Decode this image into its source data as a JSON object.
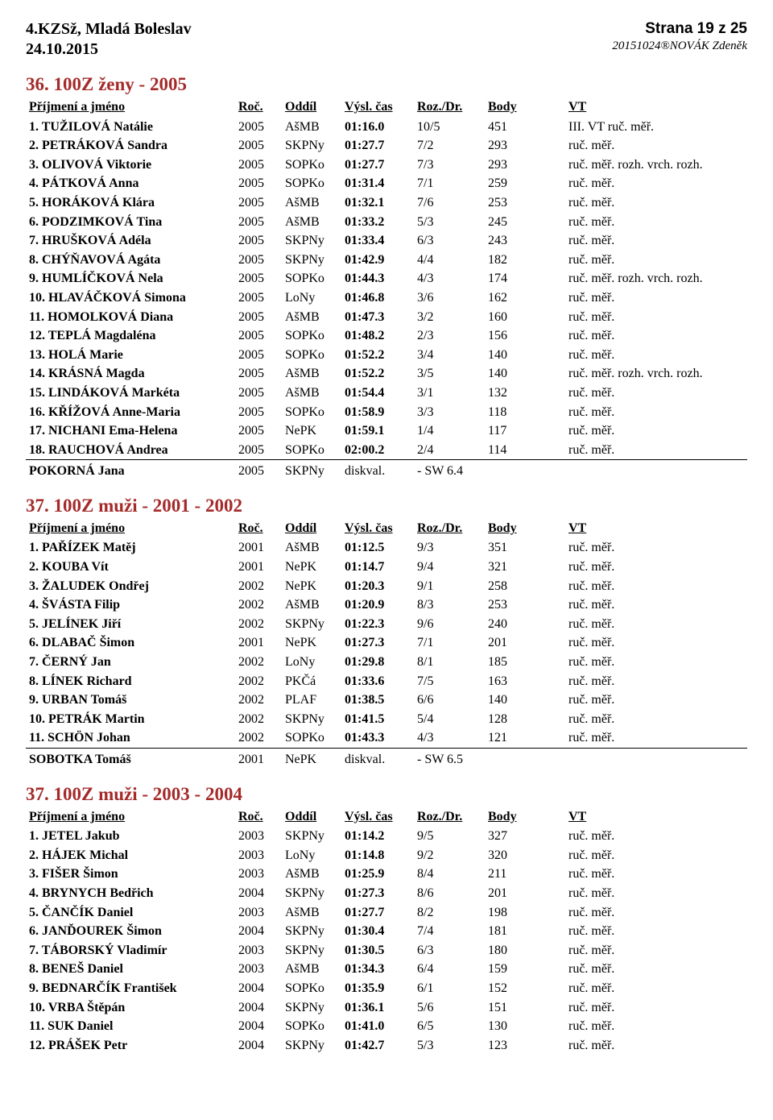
{
  "header": {
    "left1": "4.KZSž, Mladá Boleslav",
    "left2": "24.10.2015",
    "right1": "Strana 19 z 25",
    "right2": "20151024®NOVÁK Zdeněk"
  },
  "columns": {
    "name": "Příjmení a jméno",
    "roc": "Roč.",
    "oddil": "Oddíl",
    "cas": "Výsl. čas",
    "roz": "Roz./Dr.",
    "body": "Body",
    "vt": "VT"
  },
  "sections": [
    {
      "title": "36. 100Z ženy - 2005",
      "rows": [
        {
          "n": "1. TUŽILOVÁ Natálie",
          "roc": "2005",
          "oddil": "AšMB",
          "cas": "01:16.0",
          "roz": "10/5",
          "body": "451",
          "vt": "III. VT ruč. měř."
        },
        {
          "n": "2. PETRÁKOVÁ Sandra",
          "roc": "2005",
          "oddil": "SKPNy",
          "cas": "01:27.7",
          "roz": "7/2",
          "body": "293",
          "vt": "ruč. měř."
        },
        {
          "n": "3. OLIVOVÁ Viktorie",
          "roc": "2005",
          "oddil": "SOPKo",
          "cas": "01:27.7",
          "roz": "7/3",
          "body": "293",
          "vt": "ruč. měř. rozh. vrch. rozh."
        },
        {
          "n": "4. PÁTKOVÁ Anna",
          "roc": "2005",
          "oddil": "SOPKo",
          "cas": "01:31.4",
          "roz": "7/1",
          "body": "259",
          "vt": "ruč. měř."
        },
        {
          "n": "5. HORÁKOVÁ Klára",
          "roc": "2005",
          "oddil": "AšMB",
          "cas": "01:32.1",
          "roz": "7/6",
          "body": "253",
          "vt": "ruč. měř."
        },
        {
          "n": "6. PODZIMKOVÁ Tina",
          "roc": "2005",
          "oddil": "AšMB",
          "cas": "01:33.2",
          "roz": "5/3",
          "body": "245",
          "vt": "ruč. měř."
        },
        {
          "n": "7. HRUŠKOVÁ Adéla",
          "roc": "2005",
          "oddil": "SKPNy",
          "cas": "01:33.4",
          "roz": "6/3",
          "body": "243",
          "vt": "ruč. měř."
        },
        {
          "n": "8. CHÝŇAVOVÁ Agáta",
          "roc": "2005",
          "oddil": "SKPNy",
          "cas": "01:42.9",
          "roz": "4/4",
          "body": "182",
          "vt": "ruč. měř."
        },
        {
          "n": "9. HUMLÍČKOVÁ Nela",
          "roc": "2005",
          "oddil": "SOPKo",
          "cas": "01:44.3",
          "roz": "4/3",
          "body": "174",
          "vt": "ruč. měř. rozh. vrch. rozh."
        },
        {
          "n": "10. HLAVÁČKOVÁ Simona",
          "roc": "2005",
          "oddil": "LoNy",
          "cas": "01:46.8",
          "roz": "3/6",
          "body": "162",
          "vt": "ruč. měř."
        },
        {
          "n": "11. HOMOLKOVÁ Diana",
          "roc": "2005",
          "oddil": "AšMB",
          "cas": "01:47.3",
          "roz": "3/2",
          "body": "160",
          "vt": "ruč. měř."
        },
        {
          "n": "12. TEPLÁ Magdaléna",
          "roc": "2005",
          "oddil": "SOPKo",
          "cas": "01:48.2",
          "roz": "2/3",
          "body": "156",
          "vt": "ruč. měř."
        },
        {
          "n": "13. HOLÁ Marie",
          "roc": "2005",
          "oddil": "SOPKo",
          "cas": "01:52.2",
          "roz": "3/4",
          "body": "140",
          "vt": "ruč. měř."
        },
        {
          "n": "14. KRÁSNÁ Magda",
          "roc": "2005",
          "oddil": "AšMB",
          "cas": "01:52.2",
          "roz": "3/5",
          "body": "140",
          "vt": "ruč. měř. rozh. vrch. rozh."
        },
        {
          "n": "15. LINDÁKOVÁ Markéta",
          "roc": "2005",
          "oddil": "AšMB",
          "cas": "01:54.4",
          "roz": "3/1",
          "body": "132",
          "vt": "ruč. měř."
        },
        {
          "n": "16. KŘÍŽOVÁ Anne-Maria",
          "roc": "2005",
          "oddil": "SOPKo",
          "cas": "01:58.9",
          "roz": "3/3",
          "body": "118",
          "vt": "ruč. měř."
        },
        {
          "n": "17. NICHANI Ema-Helena",
          "roc": "2005",
          "oddil": "NePK",
          "cas": "01:59.1",
          "roz": "1/4",
          "body": "117",
          "vt": "ruč. měř."
        },
        {
          "n": "18. RAUCHOVÁ Andrea",
          "roc": "2005",
          "oddil": "SOPKo",
          "cas": "02:00.2",
          "roz": "2/4",
          "body": "114",
          "vt": "ruč. měř."
        }
      ],
      "dq": [
        {
          "n": "POKORNÁ Jana",
          "roc": "2005",
          "oddil": "SKPNy",
          "cas": "diskval.",
          "roz": "- SW 6.4",
          "body": "",
          "vt": ""
        }
      ]
    },
    {
      "title": "37. 100Z muži - 2001 - 2002",
      "rows": [
        {
          "n": "1. PAŘÍZEK Matěj",
          "roc": "2001",
          "oddil": "AšMB",
          "cas": "01:12.5",
          "roz": "9/3",
          "body": "351",
          "vt": "ruč. měř."
        },
        {
          "n": "2. KOUBA Vít",
          "roc": "2001",
          "oddil": "NePK",
          "cas": "01:14.7",
          "roz": "9/4",
          "body": "321",
          "vt": "ruč. měř."
        },
        {
          "n": "3. ŽALUDEK Ondřej",
          "roc": "2002",
          "oddil": "NePK",
          "cas": "01:20.3",
          "roz": "9/1",
          "body": "258",
          "vt": "ruč. měř."
        },
        {
          "n": "4. ŠVÁSTA Filip",
          "roc": "2002",
          "oddil": "AšMB",
          "cas": "01:20.9",
          "roz": "8/3",
          "body": "253",
          "vt": "ruč. měř."
        },
        {
          "n": "5. JELÍNEK Jiří",
          "roc": "2002",
          "oddil": "SKPNy",
          "cas": "01:22.3",
          "roz": "9/6",
          "body": "240",
          "vt": "ruč. měř."
        },
        {
          "n": "6. DLABAČ Šimon",
          "roc": "2001",
          "oddil": "NePK",
          "cas": "01:27.3",
          "roz": "7/1",
          "body": "201",
          "vt": "ruč. měř."
        },
        {
          "n": "7. ČERNÝ Jan",
          "roc": "2002",
          "oddil": "LoNy",
          "cas": "01:29.8",
          "roz": "8/1",
          "body": "185",
          "vt": "ruč. měř."
        },
        {
          "n": "8. LÍNEK Richard",
          "roc": "2002",
          "oddil": "PKČá",
          "cas": "01:33.6",
          "roz": "7/5",
          "body": "163",
          "vt": "ruč. měř."
        },
        {
          "n": "9. URBAN Tomáš",
          "roc": "2002",
          "oddil": "PLAF",
          "cas": "01:38.5",
          "roz": "6/6",
          "body": "140",
          "vt": "ruč. měř."
        },
        {
          "n": "10. PETRÁK Martin",
          "roc": "2002",
          "oddil": "SKPNy",
          "cas": "01:41.5",
          "roz": "5/4",
          "body": "128",
          "vt": "ruč. měř."
        },
        {
          "n": "11. SCHÖN Johan",
          "roc": "2002",
          "oddil": "SOPKo",
          "cas": "01:43.3",
          "roz": "4/3",
          "body": "121",
          "vt": "ruč. měř."
        }
      ],
      "dq": [
        {
          "n": "SOBOTKA Tomáš",
          "roc": "2001",
          "oddil": "NePK",
          "cas": "diskval.",
          "roz": "- SW 6.5",
          "body": "",
          "vt": ""
        }
      ]
    },
    {
      "title": "37. 100Z muži - 2003 - 2004",
      "rows": [
        {
          "n": "1. JETEL Jakub",
          "roc": "2003",
          "oddil": "SKPNy",
          "cas": "01:14.2",
          "roz": "9/5",
          "body": "327",
          "vt": "ruč. měř."
        },
        {
          "n": "2. HÁJEK Michal",
          "roc": "2003",
          "oddil": "LoNy",
          "cas": "01:14.8",
          "roz": "9/2",
          "body": "320",
          "vt": "ruč. měř."
        },
        {
          "n": "3. FIŠER Šimon",
          "roc": "2003",
          "oddil": "AšMB",
          "cas": "01:25.9",
          "roz": "8/4",
          "body": "211",
          "vt": "ruč. měř."
        },
        {
          "n": "4. BRYNYCH Bedřich",
          "roc": "2004",
          "oddil": "SKPNy",
          "cas": "01:27.3",
          "roz": "8/6",
          "body": "201",
          "vt": "ruč. měř."
        },
        {
          "n": "5. ČANČÍK Daniel",
          "roc": "2003",
          "oddil": "AšMB",
          "cas": "01:27.7",
          "roz": "8/2",
          "body": "198",
          "vt": "ruč. měř."
        },
        {
          "n": "6. JANĎOUREK Šimon",
          "roc": "2004",
          "oddil": "SKPNy",
          "cas": "01:30.4",
          "roz": "7/4",
          "body": "181",
          "vt": "ruč. měř."
        },
        {
          "n": "7. TÁBORSKÝ Vladimír",
          "roc": "2003",
          "oddil": "SKPNy",
          "cas": "01:30.5",
          "roz": "6/3",
          "body": "180",
          "vt": "ruč. měř."
        },
        {
          "n": "8. BENEŠ Daniel",
          "roc": "2003",
          "oddil": "AšMB",
          "cas": "01:34.3",
          "roz": "6/4",
          "body": "159",
          "vt": "ruč. měř."
        },
        {
          "n": "9. BEDNARČÍK František",
          "roc": "2004",
          "oddil": "SOPKo",
          "cas": "01:35.9",
          "roz": "6/1",
          "body": "152",
          "vt": "ruč. měř."
        },
        {
          "n": "10. VRBA Štěpán",
          "roc": "2004",
          "oddil": "SKPNy",
          "cas": "01:36.1",
          "roz": "5/6",
          "body": "151",
          "vt": "ruč. měř."
        },
        {
          "n": "11. SUK Daniel",
          "roc": "2004",
          "oddil": "SOPKo",
          "cas": "01:41.0",
          "roz": "6/5",
          "body": "130",
          "vt": "ruč. měř."
        },
        {
          "n": "12. PRÁŠEK Petr",
          "roc": "2004",
          "oddil": "SKPNy",
          "cas": "01:42.7",
          "roz": "5/3",
          "body": "123",
          "vt": "ruč. měř."
        }
      ],
      "dq": []
    }
  ]
}
